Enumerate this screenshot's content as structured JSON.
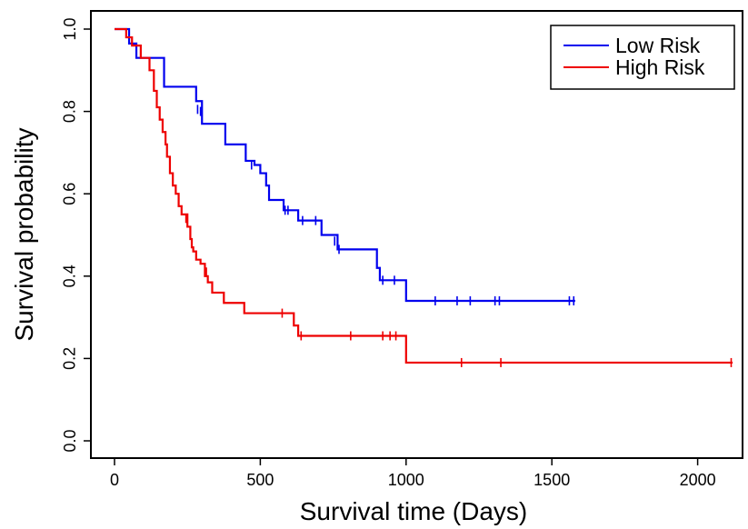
{
  "chart_data": {
    "type": "line",
    "xlabel": "Survival time (Days)",
    "ylabel": "Survival probability",
    "xlim": [
      0,
      2200
    ],
    "ylim": [
      0,
      1.0
    ],
    "xticks": [
      "0",
      "500",
      "1000",
      "1500",
      "2000"
    ],
    "yticks": [
      "0.0",
      "0.2",
      "0.4",
      "0.6",
      "0.8",
      "1.0"
    ],
    "legend_position": "top-right",
    "series": [
      {
        "name": "Low Risk",
        "color": "#0000ee",
        "steps": [
          [
            0,
            1.0
          ],
          [
            50,
            0.965
          ],
          [
            75,
            0.93
          ],
          [
            170,
            0.86
          ],
          [
            265,
            0.86
          ],
          [
            280,
            0.825
          ],
          [
            300,
            0.77
          ],
          [
            380,
            0.77
          ],
          [
            380,
            0.72
          ],
          [
            440,
            0.72
          ],
          [
            450,
            0.68
          ],
          [
            480,
            0.67
          ],
          [
            500,
            0.65
          ],
          [
            520,
            0.62
          ],
          [
            530,
            0.585
          ],
          [
            570,
            0.585
          ],
          [
            580,
            0.56
          ],
          [
            630,
            0.56
          ],
          [
            630,
            0.535
          ],
          [
            705,
            0.535
          ],
          [
            710,
            0.5
          ],
          [
            760,
            0.5
          ],
          [
            765,
            0.465
          ],
          [
            895,
            0.465
          ],
          [
            900,
            0.42
          ],
          [
            910,
            0.39
          ],
          [
            1000,
            0.39
          ],
          [
            1000,
            0.34
          ],
          [
            1580,
            0.34
          ]
        ],
        "censored": [
          [
            285,
            0.805
          ],
          [
            295,
            0.8
          ],
          [
            450,
            0.69
          ],
          [
            470,
            0.67
          ],
          [
            585,
            0.56
          ],
          [
            595,
            0.56
          ],
          [
            645,
            0.535
          ],
          [
            690,
            0.535
          ],
          [
            755,
            0.485
          ],
          [
            770,
            0.465
          ],
          [
            920,
            0.39
          ],
          [
            960,
            0.39
          ],
          [
            1100,
            0.34
          ],
          [
            1175,
            0.34
          ],
          [
            1220,
            0.34
          ],
          [
            1305,
            0.34
          ],
          [
            1320,
            0.34
          ],
          [
            1560,
            0.34
          ],
          [
            1575,
            0.34
          ]
        ]
      },
      {
        "name": "High Risk",
        "color": "#ee0000",
        "steps": [
          [
            0,
            1.0
          ],
          [
            40,
            0.98
          ],
          [
            60,
            0.96
          ],
          [
            90,
            0.93
          ],
          [
            120,
            0.9
          ],
          [
            135,
            0.85
          ],
          [
            145,
            0.81
          ],
          [
            155,
            0.78
          ],
          [
            165,
            0.75
          ],
          [
            175,
            0.72
          ],
          [
            180,
            0.69
          ],
          [
            190,
            0.65
          ],
          [
            200,
            0.62
          ],
          [
            210,
            0.6
          ],
          [
            220,
            0.57
          ],
          [
            230,
            0.55
          ],
          [
            250,
            0.52
          ],
          [
            260,
            0.49
          ],
          [
            265,
            0.47
          ],
          [
            270,
            0.46
          ],
          [
            280,
            0.44
          ],
          [
            295,
            0.43
          ],
          [
            310,
            0.4
          ],
          [
            320,
            0.385
          ],
          [
            335,
            0.36
          ],
          [
            375,
            0.335
          ],
          [
            445,
            0.31
          ],
          [
            615,
            0.28
          ],
          [
            630,
            0.255
          ],
          [
            1000,
            0.19
          ],
          [
            2120,
            0.19
          ]
        ],
        "censored": [
          [
            245,
            0.54
          ],
          [
            315,
            0.41
          ],
          [
            575,
            0.31
          ],
          [
            640,
            0.255
          ],
          [
            810,
            0.255
          ],
          [
            920,
            0.255
          ],
          [
            945,
            0.255
          ],
          [
            965,
            0.255
          ],
          [
            1190,
            0.19
          ],
          [
            1325,
            0.19
          ],
          [
            2115,
            0.19
          ]
        ]
      }
    ]
  }
}
